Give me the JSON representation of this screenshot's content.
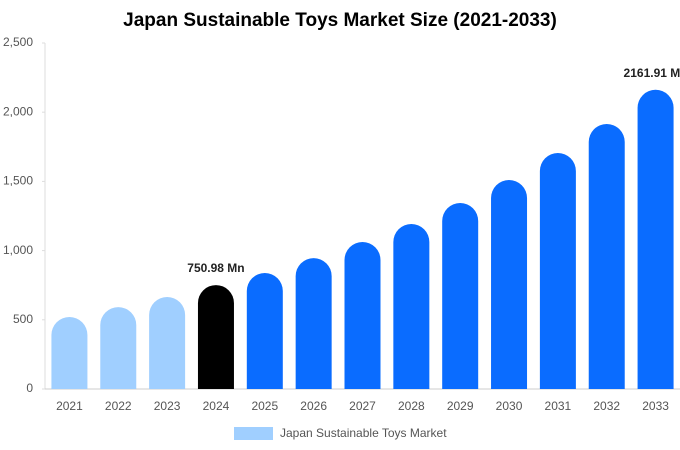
{
  "chart_data": {
    "type": "bar",
    "title": "Japan Sustainable Toys Market Size (2021-2033)",
    "categories": [
      "2021",
      "2022",
      "2023",
      "2024",
      "2025",
      "2026",
      "2027",
      "2028",
      "2029",
      "2030",
      "2031",
      "2032",
      "2033"
    ],
    "series": [
      {
        "name": "Japan Sustainable Toys Market",
        "color": "#a0cfff",
        "values": [
          520,
          592,
          665,
          750.98,
          838,
          946,
          1062,
          1192,
          1344,
          1510,
          1705,
          1915,
          2161.91
        ],
        "value_labels": [
          null,
          null,
          null,
          "750.98 Mn",
          null,
          null,
          null,
          null,
          null,
          null,
          null,
          null,
          "2161.91 Mn"
        ],
        "colors": [
          "#a0cfff",
          "#a0cfff",
          "#a0cfff",
          "#000000",
          "#0a6cff",
          "#0a6cff",
          "#0a6cff",
          "#0a6cff",
          "#0a6cff",
          "#0a6cff",
          "#0a6cff",
          "#0a6cff",
          "#0a6cff"
        ]
      }
    ],
    "ylim": [
      0,
      2500
    ],
    "yticks": [
      0,
      500,
      {
        "value": 1000,
        "label": "1,000"
      },
      {
        "value": 1500,
        "label": "1,500"
      },
      {
        "value": 2000,
        "label": "2,000"
      },
      {
        "value": 2500,
        "label": "2,500"
      }
    ],
    "grid": false,
    "legend": "bottom"
  }
}
